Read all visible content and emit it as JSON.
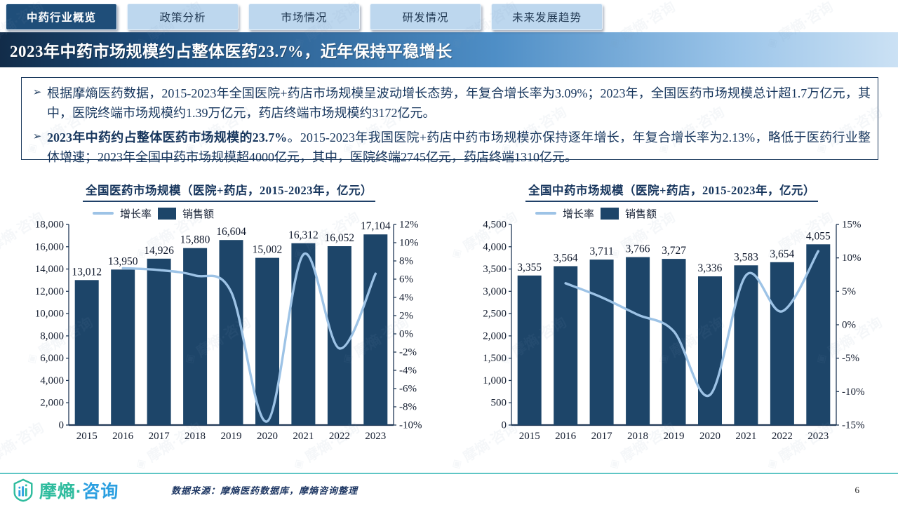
{
  "nav": {
    "tabs": [
      {
        "label": "中药行业概览",
        "active": true
      },
      {
        "label": "政策分析",
        "active": false
      },
      {
        "label": "市场情况",
        "active": false
      },
      {
        "label": "研发情况",
        "active": false
      },
      {
        "label": "未来发展趋势",
        "active": false
      }
    ]
  },
  "banner": {
    "title": "2023年中药市场规模约占整体医药23.7%，近年保持平稳增长"
  },
  "bullets": [
    {
      "marker": "➢",
      "lead": "",
      "rest": "根据摩熵医药数据，2015-2023年全国医院+药店市场规模呈波动增长态势，年复合增长率为3.09%；2023年，全国医药市场规模总计超1.7万亿元，其中，医院终端市场规模约1.39万亿元，药店终端市场规模约3172亿元。"
    },
    {
      "marker": "➢",
      "lead": "2023年中药约占整体医药市场规模的23.7%",
      "rest": "。2015-2023年我国医院+药店中药市场规模亦保持逐年增长，年复合增长率为2.13%，略低于医药行业整体增速；2023年全国中药市场规模超4000亿元，其中，医院终端2745亿元，药店终端1310亿元。"
    }
  ],
  "chart_data": [
    {
      "type": "bar",
      "title": "全国医药市场规模（医院+药店，2015-2023年，亿元）",
      "categories": [
        "2015",
        "2016",
        "2017",
        "2018",
        "2019",
        "2020",
        "2021",
        "2022",
        "2023"
      ],
      "series": [
        {
          "name": "销售额",
          "type": "bar",
          "values": [
            13012,
            13950,
            14926,
            15880,
            16604,
            15002,
            16312,
            16052,
            17104
          ]
        },
        {
          "name": "增长率",
          "type": "line",
          "unit": "%",
          "values": [
            null,
            7.2,
            7.0,
            6.4,
            4.6,
            -9.6,
            8.7,
            -1.6,
            6.6
          ]
        }
      ],
      "left_axis": {
        "min": 0,
        "max": 18000,
        "step": 2000
      },
      "right_axis": {
        "min": -10,
        "max": 12,
        "step": 2,
        "format": "percent"
      },
      "legend_position": "top-left",
      "grid": false
    },
    {
      "type": "bar",
      "title": "全国中药市场规模（医院+药店，2015-2023年，亿元）",
      "categories": [
        "2015",
        "2016",
        "2017",
        "2018",
        "2019",
        "2020",
        "2021",
        "2022",
        "2023"
      ],
      "series": [
        {
          "name": "销售额",
          "type": "bar",
          "values": [
            3355,
            3564,
            3711,
            3766,
            3727,
            3336,
            3583,
            3654,
            4055
          ]
        },
        {
          "name": "增长率",
          "type": "line",
          "unit": "%",
          "values": [
            null,
            6.2,
            4.1,
            1.5,
            -1.0,
            -10.5,
            7.4,
            2.0,
            11.0
          ]
        }
      ],
      "left_axis": {
        "min": 0,
        "max": 4500,
        "step": 500
      },
      "right_axis": {
        "min": -15,
        "max": 15,
        "step": 5,
        "format": "percent"
      },
      "legend_position": "top-left",
      "grid": false
    }
  ],
  "footer": {
    "logo_primary": "摩熵",
    "logo_separator": "·",
    "logo_secondary": "咨询",
    "source": "数据来源：摩熵医药数据库，摩熵咨询整理",
    "page": "6"
  },
  "watermark": {
    "text": "摩熵·咨询"
  },
  "colors": {
    "bar": "#1d4569",
    "line": "#9dc3e6",
    "navy": "#17365d",
    "tab_active": "#1f4e79",
    "tab_inactive": "#bdd7ee",
    "accent_teal": "#5fc6c5",
    "axis": "#223a57"
  }
}
